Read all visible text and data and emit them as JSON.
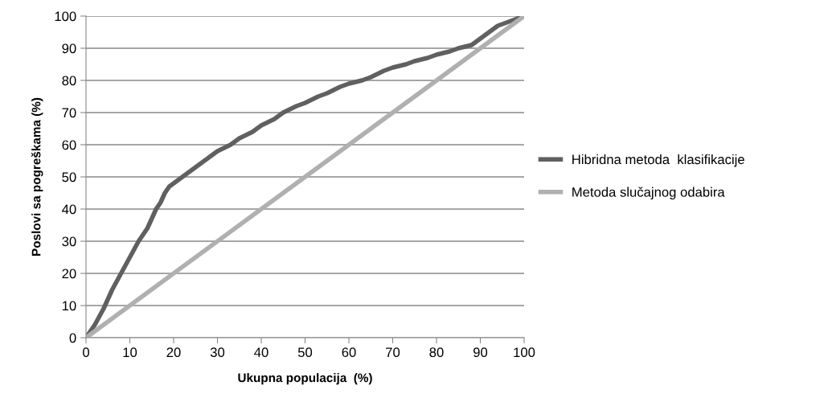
{
  "chart_data": {
    "type": "line",
    "xlabel": "Ukupna populacija  (%)",
    "ylabel": "Poslovi sa pogreškama (%)",
    "xlim": [
      0,
      100
    ],
    "ylim": [
      0,
      100
    ],
    "xticks": [
      0,
      10,
      20,
      30,
      40,
      50,
      60,
      70,
      80,
      90,
      100
    ],
    "yticks": [
      0,
      10,
      20,
      30,
      40,
      50,
      60,
      70,
      80,
      90,
      100
    ],
    "grid": "y",
    "legend": "right",
    "marker": "none",
    "line_style": "solid",
    "series": [
      {
        "name": "Hibridna metoda  klasifikacije",
        "color": "#606060",
        "x": [
          0,
          2,
          4,
          6,
          8,
          10,
          12,
          14,
          16,
          17,
          18,
          19,
          20,
          22,
          25,
          28,
          30,
          33,
          35,
          38,
          40,
          43,
          45,
          48,
          50,
          53,
          55,
          58,
          60,
          63,
          65,
          68,
          70,
          73,
          75,
          78,
          80,
          83,
          85,
          88,
          90,
          92,
          94,
          96,
          98,
          100
        ],
        "values": [
          0,
          4,
          9,
          15,
          20,
          25,
          30,
          34,
          40,
          42,
          45,
          47,
          48,
          50,
          53,
          56,
          58,
          60,
          62,
          64,
          66,
          68,
          70,
          72,
          73,
          75,
          76,
          78,
          79,
          80,
          81,
          83,
          84,
          85,
          86,
          87,
          88,
          89,
          90,
          91,
          93,
          95,
          97,
          98,
          99,
          100
        ]
      },
      {
        "name": "Metoda slučajnog odabira",
        "color": "#b0b0b0",
        "x": [
          0,
          100
        ],
        "values": [
          0,
          100
        ]
      }
    ]
  }
}
